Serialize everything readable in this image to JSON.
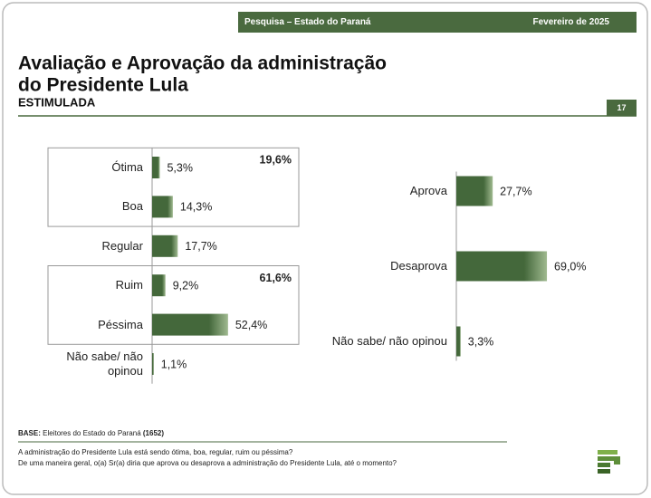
{
  "header": {
    "left": "Pesquisa – Estado do Paraná",
    "right": "Fevereiro de 2025"
  },
  "title": [
    "Avaliação e Aprovação da administração",
    "do Presidente Lula"
  ],
  "subtitle": "ESTIMULADA",
  "page_number": "17",
  "chart_data": [
    {
      "type": "bar",
      "orientation": "horizontal",
      "categories": [
        "Ótima",
        "Boa",
        "Regular",
        "Ruim",
        "Péssima",
        "Não sabe/ não opinou"
      ],
      "values": [
        5.3,
        14.3,
        17.7,
        9.2,
        52.4,
        1.1
      ],
      "value_labels": [
        "5,3%",
        "14,3%",
        "17,7%",
        "9,2%",
        "52,4%",
        "1,1%"
      ],
      "color": "#44683b",
      "xlim": [
        0,
        100
      ],
      "groups": {
        "categories": [
          [
            "Ótima",
            "Boa"
          ],
          [
            "Ruim",
            "Péssima"
          ]
        ],
        "values": [
          19.6,
          61.6
        ],
        "value_labels": [
          "19,6%",
          "61,6%"
        ]
      }
    },
    {
      "type": "bar",
      "orientation": "horizontal",
      "categories": [
        "Aprova",
        "Desaprova",
        "Não sabe/ não opinou"
      ],
      "values": [
        27.7,
        69.0,
        3.3
      ],
      "value_labels": [
        "27,7%",
        "69,0%",
        "3,3%"
      ],
      "color": "#44683b",
      "xlim": [
        0,
        100
      ]
    }
  ],
  "footer": {
    "base_label": "BASE:",
    "base_text": "Eleitores do Estado do Paraná",
    "base_n": "(1652)",
    "questions": [
      "A administração do Presidente Lula está sendo ótima, boa, regular, ruim ou péssima?",
      "De uma maneira geral, o(a) Sr(a) diria que aprova ou desaprova a administração do Presidente Lula, até o momento?"
    ]
  }
}
